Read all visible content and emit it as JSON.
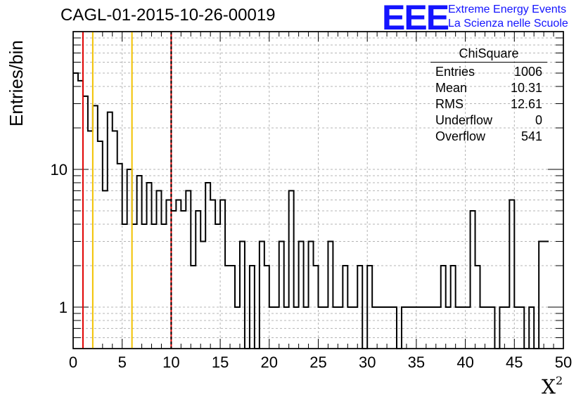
{
  "header": {
    "title": "CAGL-01-2015-10-26-00019",
    "logo": "EEE",
    "logo_line1": "Extreme Energy Events",
    "logo_line2": "La Scienza nelle Scuole"
  },
  "stats": {
    "title": "ChiSquare",
    "rows": [
      {
        "label": "Entries",
        "value": "1006"
      },
      {
        "label": "Mean",
        "value": "10.31"
      },
      {
        "label": "RMS",
        "value": "12.61"
      },
      {
        "label": "Underflow",
        "value": "0"
      },
      {
        "label": "Overflow",
        "value": "541"
      }
    ]
  },
  "chart_data": {
    "type": "bar",
    "style": "step-histogram",
    "xlabel": "X",
    "xlabel_superscript": "2",
    "ylabel": "Entries/bin",
    "xlim": [
      0,
      50
    ],
    "ylim": [
      0.5,
      100
    ],
    "y_scale": "log",
    "grid": true,
    "bin_width": 0.5,
    "x_ticks": [
      "0",
      "5",
      "10",
      "15",
      "20",
      "25",
      "30",
      "35",
      "40",
      "45",
      "50"
    ],
    "y_ticks": [
      "1",
      "10"
    ],
    "y_tick_values": [
      1,
      10
    ],
    "values": [
      50,
      44,
      34,
      19,
      29,
      16,
      7,
      26,
      19,
      11,
      4,
      10,
      4,
      9,
      4,
      8,
      4,
      7,
      4,
      6,
      5,
      6,
      5,
      7,
      2,
      5,
      3,
      8,
      6,
      4,
      6,
      2,
      2,
      1,
      3,
      0,
      2,
      0,
      3,
      2,
      1,
      1,
      3,
      1,
      7,
      1,
      3,
      1,
      3,
      2,
      1,
      1,
      3,
      1,
      1,
      2,
      1,
      1,
      2,
      0,
      2,
      1,
      1,
      1,
      1,
      1,
      0,
      1,
      1,
      1,
      1,
      1,
      1,
      1,
      1,
      2,
      1,
      2,
      1,
      1,
      1,
      5,
      2,
      1,
      1,
      1,
      0,
      1,
      1,
      6,
      1,
      1,
      0,
      1,
      0,
      3,
      3
    ],
    "lines": [
      {
        "x": 1,
        "color": "#e00000",
        "style": "solid"
      },
      {
        "x": 2,
        "color": "#f2c200",
        "style": "solid"
      },
      {
        "x": 6,
        "color": "#f2c200",
        "style": "solid"
      },
      {
        "x": 10,
        "color": "#e00000",
        "style": "solid"
      },
      {
        "x": 10,
        "color": "#000000",
        "style": "dashed"
      }
    ],
    "line_color": "#000000",
    "grid_color": "#b4b4b4"
  }
}
